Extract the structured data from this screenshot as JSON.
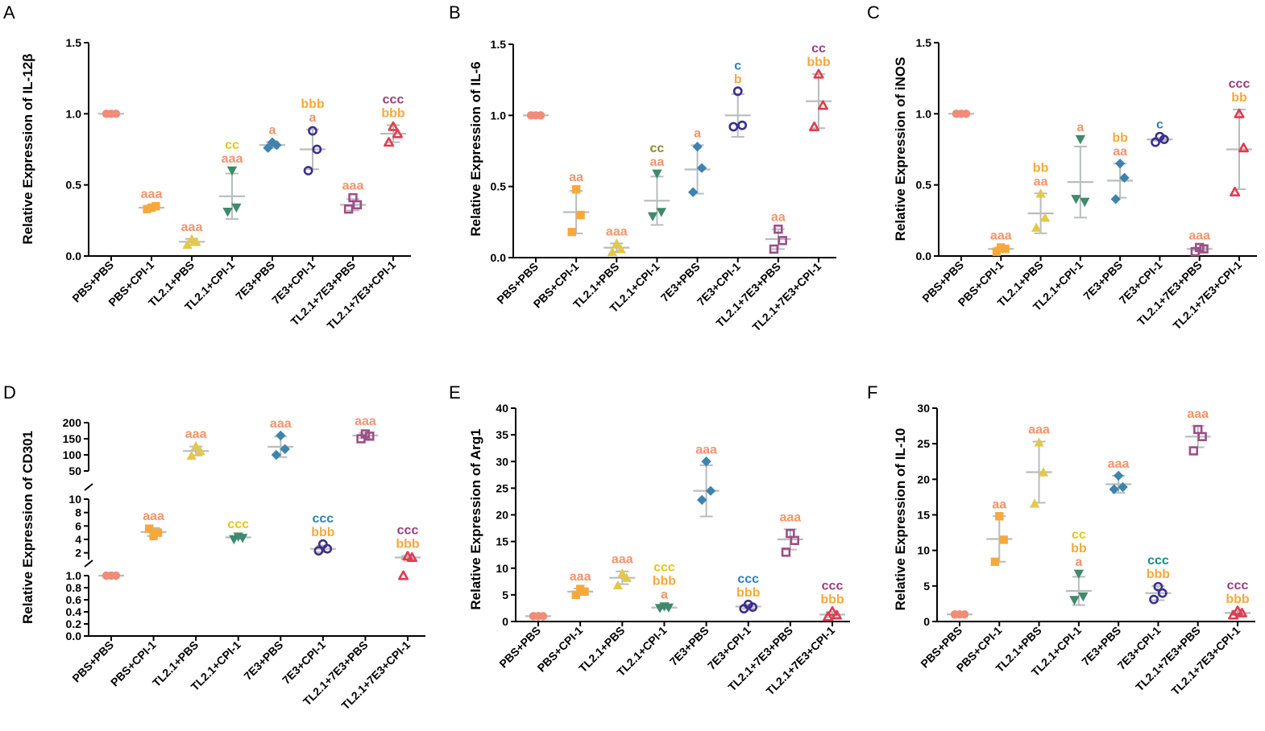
{
  "figure": {
    "categories": [
      "PBS+PBS",
      "PBS+CPI-1",
      "TL2.1+PBS",
      "TL2.1+CPI-1",
      "7E3+PBS",
      "7E3+CPI-1",
      "TL2.1+7E3+PBS",
      "TL2.1+7E3+CPI-1"
    ],
    "group_colors": [
      "#f28b78",
      "#f6a93b",
      "#e3c94a",
      "#3e8a6a",
      "#3f83ad",
      "#3b2f8c",
      "#9c4f88",
      "#e03c50"
    ],
    "group_shapes": [
      "circle",
      "square",
      "triangle-up",
      "triangle-down",
      "diamond",
      "circle-open",
      "square-open",
      "triangle-open"
    ],
    "error_bar_color": "#b7bcbc",
    "marks": {
      "a": "#f4946c",
      "b": "#f6a93b",
      "c1": "#e2c61b",
      "c2": "#8a8a2f",
      "c3": "#2d7fb8",
      "c4": "#9a3c7c",
      "c5": "#178a7d"
    }
  },
  "chart_data": [
    {
      "panel": "A",
      "type": "scatter",
      "ylabel": "Relative Expression of IL-12β",
      "ylim": [
        0,
        1.5
      ],
      "yticks": [
        0.0,
        0.5,
        1.0,
        1.5
      ],
      "yticklabels": [
        "0.0",
        "0.5",
        "1.0",
        "1.5"
      ],
      "categories": [
        "PBS+PBS",
        "PBS+CPI-1",
        "TL2.1+PBS",
        "TL2.1+CPI-1",
        "7E3+PBS",
        "7E3+CPI-1",
        "TL2.1+7E3+PBS",
        "TL2.1+7E3+CPI-1"
      ],
      "points": [
        [
          1.0,
          1.0,
          1.0
        ],
        [
          0.34,
          0.33,
          0.35
        ],
        [
          0.12,
          0.08,
          0.1
        ],
        [
          0.6,
          0.31,
          0.34
        ],
        [
          0.8,
          0.76,
          0.78
        ],
        [
          0.88,
          0.6,
          0.75
        ],
        [
          0.41,
          0.33,
          0.36
        ],
        [
          0.91,
          0.8,
          0.86
        ]
      ],
      "mean": [
        1.0,
        0.34,
        0.1,
        0.42,
        0.78,
        0.75,
        0.36,
        0.86
      ],
      "sd": [
        0.0,
        0.01,
        0.02,
        0.16,
        0.02,
        0.14,
        0.04,
        0.06
      ],
      "annotations": [
        [],
        [
          [
            "aaa",
            "a"
          ]
        ],
        [
          [
            "aaa",
            "a"
          ]
        ],
        [
          [
            "cc",
            "c1"
          ],
          [
            "aaa",
            "a"
          ]
        ],
        [
          [
            "a",
            "a"
          ]
        ],
        [
          [
            "bbb",
            "b"
          ],
          [
            "a",
            "a"
          ]
        ],
        [
          [
            "aaa",
            "a"
          ]
        ],
        [
          [
            "ccc",
            "c4"
          ],
          [
            "bbb",
            "b"
          ]
        ]
      ]
    },
    {
      "panel": "B",
      "type": "scatter",
      "ylabel": "Relative Expression of IL-6",
      "ylim": [
        0,
        1.5
      ],
      "yticks": [
        0.0,
        0.5,
        1.0,
        1.5
      ],
      "yticklabels": [
        "0.0",
        "0.5",
        "1.0",
        "1.5"
      ],
      "categories": [
        "PBS+PBS",
        "PBS+CPI-1",
        "TL2.1+PBS",
        "TL2.1+CPI-1",
        "7E3+PBS",
        "7E3+CPI-1",
        "TL2.1+7E3+PBS",
        "TL2.1+7E3+CPI-1"
      ],
      "points": [
        [
          1.0,
          1.0,
          1.0
        ],
        [
          0.48,
          0.18,
          0.3
        ],
        [
          0.1,
          0.04,
          0.06
        ],
        [
          0.59,
          0.29,
          0.32
        ],
        [
          0.78,
          0.46,
          0.63
        ],
        [
          1.17,
          0.92,
          0.93
        ],
        [
          0.2,
          0.06,
          0.12
        ],
        [
          1.29,
          0.92,
          1.07
        ]
      ],
      "mean": [
        1.0,
        0.32,
        0.07,
        0.4,
        0.62,
        1.0,
        0.13,
        1.1
      ],
      "sd": [
        0.0,
        0.15,
        0.03,
        0.17,
        0.17,
        0.15,
        0.07,
        0.19
      ],
      "annotations": [
        [],
        [
          [
            "aa",
            "a"
          ]
        ],
        [
          [
            "aaa",
            "a"
          ]
        ],
        [
          [
            "cc",
            "c2"
          ],
          [
            "aa",
            "a"
          ]
        ],
        [
          [
            "a",
            "a"
          ]
        ],
        [
          [
            "c",
            "c3"
          ],
          [
            "b",
            "b"
          ]
        ],
        [
          [
            "aa",
            "a"
          ]
        ],
        [
          [
            "cc",
            "c4"
          ],
          [
            "bbb",
            "b"
          ]
        ]
      ]
    },
    {
      "panel": "C",
      "type": "scatter",
      "ylabel": "Relative Expression of iNOS",
      "ylim": [
        0,
        1.5
      ],
      "yticks": [
        0.0,
        0.5,
        1.0,
        1.5
      ],
      "yticklabels": [
        "0.0",
        "0.5",
        "1.0",
        "1.5"
      ],
      "categories": [
        "PBS+PBS",
        "PBS+CPI-1",
        "TL2.1+PBS",
        "TL2.1+CPI-1",
        "7E3+PBS",
        "7E3+CPI-1",
        "TL2.1+7E3+PBS",
        "TL2.1+7E3+CPI-1"
      ],
      "points": [
        [
          1.0,
          1.0,
          1.0
        ],
        [
          0.06,
          0.03,
          0.05
        ],
        [
          0.44,
          0.2,
          0.27
        ],
        [
          0.82,
          0.4,
          0.38
        ],
        [
          0.65,
          0.4,
          0.55
        ],
        [
          0.84,
          0.8,
          0.82
        ],
        [
          0.06,
          0.03,
          0.05
        ],
        [
          1.0,
          0.45,
          0.76
        ]
      ],
      "mean": [
        1.0,
        0.05,
        0.3,
        0.52,
        0.53,
        0.82,
        0.05,
        0.75
      ],
      "sd": [
        0.0,
        0.01,
        0.14,
        0.25,
        0.12,
        0.01,
        0.01,
        0.28
      ],
      "annotations": [
        [],
        [
          [
            "aaa",
            "a"
          ]
        ],
        [
          [
            "bb",
            "b"
          ],
          [
            "aa",
            "a"
          ]
        ],
        [
          [
            "a",
            "a"
          ]
        ],
        [
          [
            "bb",
            "b"
          ],
          [
            "aa",
            "a"
          ]
        ],
        [
          [
            "c",
            "c3"
          ]
        ],
        [
          [
            "aaa",
            "a"
          ]
        ],
        [
          [
            "ccc",
            "c4"
          ],
          [
            "bb",
            "b"
          ]
        ]
      ]
    },
    {
      "panel": "D",
      "type": "scatter",
      "ylabel": "Relative Expression of CD301",
      "ylim": [
        0,
        200
      ],
      "axis_break": "segmented: 0–1.0, 1–10, 50–200",
      "yticks": [
        0,
        0.2,
        0.4,
        0.6,
        0.8,
        1.0,
        2,
        4,
        6,
        8,
        10,
        50,
        100,
        150,
        200
      ],
      "yticklabels": [
        "0.0",
        "0.2",
        "0.4",
        "0.6",
        "0.8",
        "1.0",
        "2",
        "4",
        "6",
        "8",
        "10",
        "50",
        "100",
        "150",
        "200"
      ],
      "categories": [
        "PBS+PBS",
        "PBS+CPI-1",
        "TL2.1+PBS",
        "TL2.1+CPI-1",
        "7E3+PBS",
        "7E3+CPI-1",
        "TL2.1+7E3+PBS",
        "TL2.1+7E3+CPI-1"
      ],
      "points": [
        [
          1.0,
          1.0,
          1.0
        ],
        [
          4.5,
          5.6,
          5.0
        ],
        [
          128,
          98,
          112
        ],
        [
          4.4,
          4.0,
          4.2
        ],
        [
          160,
          100,
          118
        ],
        [
          3.3,
          2.3,
          2.6
        ],
        [
          165,
          150,
          158
        ],
        [
          1.5,
          1.0,
          1.3
        ]
      ],
      "mean": [
        1.0,
        5.1,
        112,
        4.3,
        125,
        2.6,
        160,
        1.3
      ],
      "sd": [
        0.0,
        0.6,
        14,
        0.2,
        32,
        0.5,
        8,
        0.25
      ],
      "annotations": [
        [],
        [
          [
            "aaa",
            "a"
          ]
        ],
        [
          [
            "aaa",
            "a"
          ]
        ],
        [
          [
            "ccc",
            "c1"
          ]
        ],
        [
          [
            "aaa",
            "a"
          ]
        ],
        [
          [
            "ccc",
            "c3"
          ],
          [
            "bbb",
            "b"
          ]
        ],
        [
          [
            "aaa",
            "a"
          ]
        ],
        [
          [
            "ccc",
            "c4"
          ],
          [
            "bbb",
            "b"
          ]
        ]
      ]
    },
    {
      "panel": "E",
      "type": "scatter",
      "ylabel": "Relative Expression of Arg1",
      "ylim": [
        0,
        40
      ],
      "yticks": [
        0,
        5,
        10,
        15,
        20,
        25,
        30,
        35,
        40
      ],
      "yticklabels": [
        "0",
        "5",
        "10",
        "15",
        "20",
        "25",
        "30",
        "35",
        "40"
      ],
      "categories": [
        "PBS+PBS",
        "PBS+CPI-1",
        "TL2.1+PBS",
        "TL2.1+CPI-1",
        "7E3+PBS",
        "7E3+CPI-1",
        "TL2.1+7E3+PBS",
        "TL2.1+7E3+CPI-1"
      ],
      "points": [
        [
          1.0,
          1.0,
          1.0
        ],
        [
          6.1,
          5.0,
          5.6
        ],
        [
          9.0,
          6.8,
          8.2
        ],
        [
          2.8,
          2.5,
          2.6
        ],
        [
          30.0,
          22.8,
          24.5
        ],
        [
          3.2,
          2.4,
          2.7
        ],
        [
          16.5,
          13.0,
          15.2
        ],
        [
          1.9,
          0.9,
          1.2
        ]
      ],
      "mean": [
        1.0,
        5.6,
        8.2,
        2.6,
        24.5,
        2.8,
        15.4,
        1.3
      ],
      "sd": [
        0.0,
        0.6,
        1.2,
        0.2,
        4.8,
        0.4,
        1.9,
        0.5
      ],
      "annotations": [
        [],
        [
          [
            "aaa",
            "a"
          ]
        ],
        [
          [
            "aaa",
            "a"
          ]
        ],
        [
          [
            "ccc",
            "c1"
          ],
          [
            "bbb",
            "b"
          ],
          [
            "a",
            "a"
          ]
        ],
        [
          [
            "aaa",
            "a"
          ]
        ],
        [
          [
            "ccc",
            "c3"
          ],
          [
            "bbb",
            "b"
          ]
        ],
        [
          [
            "aaa",
            "a"
          ]
        ],
        [
          [
            "ccc",
            "c4"
          ],
          [
            "bbb",
            "b"
          ]
        ]
      ]
    },
    {
      "panel": "F",
      "type": "scatter",
      "ylabel": "Relative Expression of IL-10",
      "ylim": [
        0,
        30
      ],
      "yticks": [
        0,
        5,
        10,
        15,
        20,
        25,
        30
      ],
      "yticklabels": [
        "0",
        "5",
        "10",
        "15",
        "20",
        "25",
        "30"
      ],
      "categories": [
        "PBS+PBS",
        "PBS+CPI-1",
        "TL2.1+PBS",
        "TL2.1+CPI-1",
        "7E3+PBS",
        "7E3+CPI-1",
        "TL2.1+7E3+PBS",
        "TL2.1+7E3+CPI-1"
      ],
      "points": [
        [
          1.0,
          1.0,
          1.0
        ],
        [
          14.8,
          8.4,
          11.5
        ],
        [
          25.2,
          16.6,
          21.0
        ],
        [
          6.7,
          3.0,
          3.5
        ],
        [
          20.5,
          18.6,
          18.9
        ],
        [
          4.9,
          3.1,
          4.0
        ],
        [
          27.0,
          24.0,
          26.0
        ],
        [
          1.5,
          0.9,
          1.2
        ]
      ],
      "mean": [
        1.0,
        11.6,
        21.0,
        4.3,
        19.3,
        4.0,
        26.0,
        1.2
      ],
      "sd": [
        0.0,
        3.2,
        4.3,
        2.0,
        1.2,
        1.0,
        1.5,
        0.3
      ],
      "annotations": [
        [],
        [
          [
            "aa",
            "a"
          ]
        ],
        [
          [
            "aaa",
            "a"
          ]
        ],
        [
          [
            "cc",
            "c1"
          ],
          [
            "bb",
            "b"
          ],
          [
            "a",
            "a"
          ]
        ],
        [
          [
            "aaa",
            "a"
          ]
        ],
        [
          [
            "ccc",
            "c5"
          ],
          [
            "bbb",
            "b"
          ]
        ],
        [
          [
            "aaa",
            "a"
          ]
        ],
        [
          [
            "ccc",
            "c4"
          ],
          [
            "bbb",
            "b"
          ]
        ]
      ]
    }
  ]
}
